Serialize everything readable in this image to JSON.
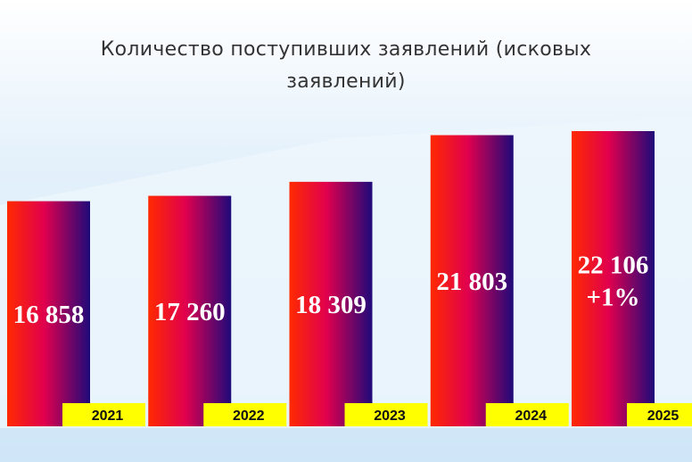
{
  "chart_data": {
    "type": "bar",
    "title": "Количество поступивших заявлений (исковых заявлений)",
    "categories": [
      "2021",
      "2022",
      "2023",
      "2024",
      "2025"
    ],
    "values": [
      16858,
      17260,
      18309,
      21803,
      22106
    ],
    "value_labels": [
      "16 858",
      "17 260",
      "18 309",
      "21 803",
      "22 106"
    ],
    "annotation": "+1%",
    "colors": [
      "#ff2a00",
      "#e0004e",
      "#1e0a7a"
    ],
    "label_color": "#ffff00"
  }
}
